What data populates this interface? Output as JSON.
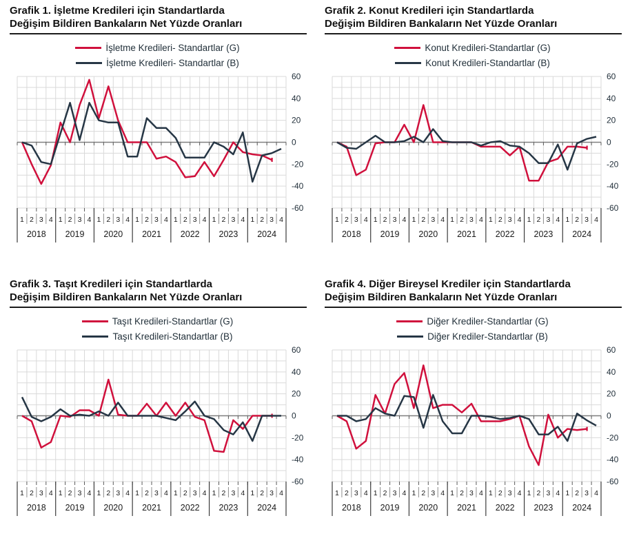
{
  "colors": {
    "g_line": "#d0103c",
    "b_line": "#263645",
    "grid": "#d9d9d9",
    "zero_line": "#7f7f7f",
    "tick": "#595959",
    "sep_minor": "#8c8c8c",
    "sep_major": "#3a3a3a",
    "axis_text": "#1f2d38",
    "label_text": "#1a1a1a"
  },
  "axis": {
    "ymin": -60,
    "ymax": 60,
    "y_tick_labels": [
      "60",
      "40",
      "20",
      "0",
      "-20",
      "-40",
      "-60"
    ],
    "grid_step": 10,
    "quarter_labels": [
      "1",
      "2",
      "3",
      "4"
    ],
    "year_labels": [
      "2018",
      "2019",
      "2020",
      "2021",
      "2022",
      "2023",
      "2024"
    ]
  },
  "charts": [
    {
      "title_line1": "Grafik 1. İşletme Kredileri için Standartlarda",
      "title_line2": "Değişim Bildiren Bankaların Net Yüzde Oranları",
      "legend_g": "İşletme Kredileri- Standartlar (G)",
      "legend_b": "İşletme Kredileri- Standartlar (B)"
    },
    {
      "title_line1": "Grafik 2. Konut Kredileri için Standartlarda",
      "title_line2": "Değişim Bildiren Bankaların Net Yüzde Oranları",
      "legend_g": "Konut Kredileri-Standartlar (G)",
      "legend_b": "Konut Kredileri-Standartlar (B)"
    },
    {
      "title_line1": "Grafik 3. Taşıt Kredileri için Standartlarda",
      "title_line2": "Değişim Bildiren Bankaların Net Yüzde Oranları",
      "legend_g": "Taşıt Kredileri-Standartlar (G)",
      "legend_b": "Taşıt Kredileri-Standartlar (B)"
    },
    {
      "title_line1": "Grafik 4. Diğer Bireysel Krediler için Standartlarda",
      "title_line2": "Değişim Bildiren Bankaların Net Yüzde Oranları",
      "legend_g": "Diğer Krediler-Standartlar (G)",
      "legend_b": "Diğer Krediler-Standartlar (B)"
    }
  ],
  "chart_data": [
    {
      "type": "line",
      "title": "Grafik 1. İşletme Kredileri için Standartlarda Değişim Bildiren Bankaların Net Yüzde Oranları",
      "x_years": [
        "2018",
        "2019",
        "2020",
        "2021",
        "2022",
        "2023",
        "2024"
      ],
      "x_quarters_per_year": [
        "1",
        "2",
        "3",
        "4"
      ],
      "ylim": [
        -60,
        60
      ],
      "legend_position": "top",
      "grid": true,
      "series": [
        {
          "name": "İşletme Kredileri- Standartlar (G)",
          "values": [
            0,
            -20,
            -38,
            -21,
            18,
            0,
            34,
            57,
            22,
            51,
            20,
            0,
            0,
            0,
            -15,
            -13,
            -18,
            -32,
            -31,
            -18,
            -31,
            -16,
            0,
            -9,
            -11,
            -12,
            -16,
            null
          ]
        },
        {
          "name": "İşletme Kredileri- Standartlar (B)",
          "values": [
            0,
            -3,
            -18,
            -20,
            8,
            36,
            2,
            36,
            20,
            18,
            18,
            -13,
            -13,
            22,
            13,
            13,
            4,
            -14,
            -14,
            -14,
            0,
            -4,
            -11,
            9,
            -36,
            -12,
            -10,
            -6
          ]
        }
      ]
    },
    {
      "type": "line",
      "title": "Grafik 2. Konut Kredileri için Standartlarda Değişim Bildiren Bankaların Net Yüzde Oranları",
      "x_years": [
        "2018",
        "2019",
        "2020",
        "2021",
        "2022",
        "2023",
        "2024"
      ],
      "x_quarters_per_year": [
        "1",
        "2",
        "3",
        "4"
      ],
      "ylim": [
        -60,
        60
      ],
      "legend_position": "top",
      "grid": true,
      "series": [
        {
          "name": "Konut Kredileri-Standartlar (G)",
          "values": [
            0,
            -4,
            -30,
            -25,
            -1,
            0,
            0,
            16,
            0,
            34,
            0,
            0,
            0,
            0,
            0,
            -4,
            -4,
            -4,
            -12,
            -4,
            -35,
            -35,
            -18,
            -15,
            -4,
            -4,
            -5,
            null
          ]
        },
        {
          "name": "Konut Kredileri-Standartlar (B)",
          "values": [
            0,
            -5,
            -6,
            0,
            6,
            0,
            0,
            1,
            5,
            0,
            12,
            1,
            0,
            0,
            0,
            -3,
            0,
            1,
            -3,
            -4,
            -10,
            -19,
            -19,
            -2,
            -25,
            -1,
            3,
            5
          ]
        }
      ]
    },
    {
      "type": "line",
      "title": "Grafik 3. Taşıt Kredileri için Standartlarda Değişim Bildiren Bankaların Net Yüzde Oranları",
      "x_years": [
        "2018",
        "2019",
        "2020",
        "2021",
        "2022",
        "2023",
        "2024"
      ],
      "x_quarters_per_year": [
        "1",
        "2",
        "3",
        "4"
      ],
      "ylim": [
        -60,
        60
      ],
      "legend_position": "top",
      "grid": true,
      "series": [
        {
          "name": "Taşıt Kredileri-Standartlar (G)",
          "values": [
            0,
            -5,
            -29,
            -24,
            0,
            -1,
            5,
            5,
            0,
            33,
            1,
            0,
            0,
            11,
            0,
            12,
            0,
            12,
            -1,
            -4,
            -32,
            -33,
            -4,
            -12,
            0,
            0,
            0,
            null
          ]
        },
        {
          "name": "Taşıt Kredileri-Standartlar (B)",
          "values": [
            17,
            -1,
            -5,
            -1,
            6,
            0,
            1,
            0,
            4,
            0,
            12,
            0,
            0,
            0,
            0,
            -2,
            -4,
            4,
            13,
            0,
            -3,
            -13,
            -17,
            -6,
            -23,
            0,
            0,
            0
          ]
        }
      ]
    },
    {
      "type": "line",
      "title": "Grafik 4. Diğer Bireysel Krediler için Standartlarda Değişim Bildiren Bankaların Net Yüzde Oranları",
      "x_years": [
        "2018",
        "2019",
        "2020",
        "2021",
        "2022",
        "2023",
        "2024"
      ],
      "x_quarters_per_year": [
        "1",
        "2",
        "3",
        "4"
      ],
      "ylim": [
        -60,
        60
      ],
      "legend_position": "top",
      "grid": true,
      "series": [
        {
          "name": "Diğer Krediler-Standartlar (G)",
          "values": [
            0,
            -5,
            -30,
            -23,
            19,
            2,
            29,
            39,
            7,
            46,
            7,
            10,
            10,
            3,
            11,
            -5,
            -5,
            -5,
            -3,
            0,
            -28,
            -45,
            1,
            -20,
            -12,
            -13,
            -12,
            null
          ]
        },
        {
          "name": "Diğer Krediler-Standartlar (B)",
          "values": [
            0,
            0,
            -5,
            -3,
            7,
            2,
            0,
            18,
            17,
            -11,
            19,
            -5,
            -16,
            -16,
            0,
            0,
            -1,
            -3,
            -2,
            0,
            -3,
            -17,
            -17,
            -10,
            -23,
            2,
            -4,
            -9
          ]
        }
      ]
    }
  ]
}
